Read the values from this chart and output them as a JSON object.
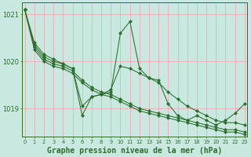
{
  "background_color": "#c8e8e0",
  "grid_color": "#e8b0b0",
  "line_color": "#2d6e2d",
  "title": "Graphe pression niveau de la mer (hPa)",
  "title_fontsize": 7.0,
  "series": [
    [
      1021.1,
      1020.4,
      1020.15,
      1020.05,
      1019.95,
      1019.85,
      1018.85,
      1019.25,
      1019.3,
      1019.35,
      1020.6,
      1020.85,
      1019.85,
      1019.65,
      1019.6,
      1019.1,
      1018.85,
      1018.75,
      1018.85,
      1018.75,
      1018.65,
      1018.75,
      1018.9,
      1019.1
    ],
    [
      1021.1,
      1020.35,
      1020.1,
      1020.0,
      1019.95,
      1019.85,
      1019.05,
      1019.25,
      1019.3,
      1019.4,
      1019.9,
      1019.85,
      1019.75,
      1019.65,
      1019.55,
      1019.35,
      1019.2,
      1019.05,
      1018.95,
      1018.85,
      1018.75,
      1018.7,
      1018.7,
      1018.65
    ],
    [
      1021.1,
      1020.3,
      1020.05,
      1019.95,
      1019.9,
      1019.8,
      1019.6,
      1019.45,
      1019.35,
      1019.3,
      1019.2,
      1019.1,
      1019.0,
      1018.95,
      1018.9,
      1018.85,
      1018.8,
      1018.75,
      1018.7,
      1018.65,
      1018.6,
      1018.55,
      1018.55,
      1018.5
    ],
    [
      1021.1,
      1020.25,
      1020.0,
      1019.9,
      1019.85,
      1019.75,
      1019.55,
      1019.4,
      1019.3,
      1019.25,
      1019.15,
      1019.05,
      1018.95,
      1018.9,
      1018.85,
      1018.8,
      1018.75,
      1018.7,
      1018.65,
      1018.6,
      1018.55,
      1018.5,
      1018.5,
      1018.45
    ]
  ],
  "ylim": [
    1018.4,
    1021.25
  ],
  "yticks": [
    1019,
    1020,
    1021
  ],
  "xticks": [
    0,
    1,
    2,
    3,
    4,
    5,
    6,
    7,
    8,
    9,
    10,
    11,
    12,
    13,
    14,
    15,
    16,
    17,
    18,
    19,
    20,
    21,
    22,
    23
  ],
  "markersize": 2.2,
  "linewidth": 0.75
}
